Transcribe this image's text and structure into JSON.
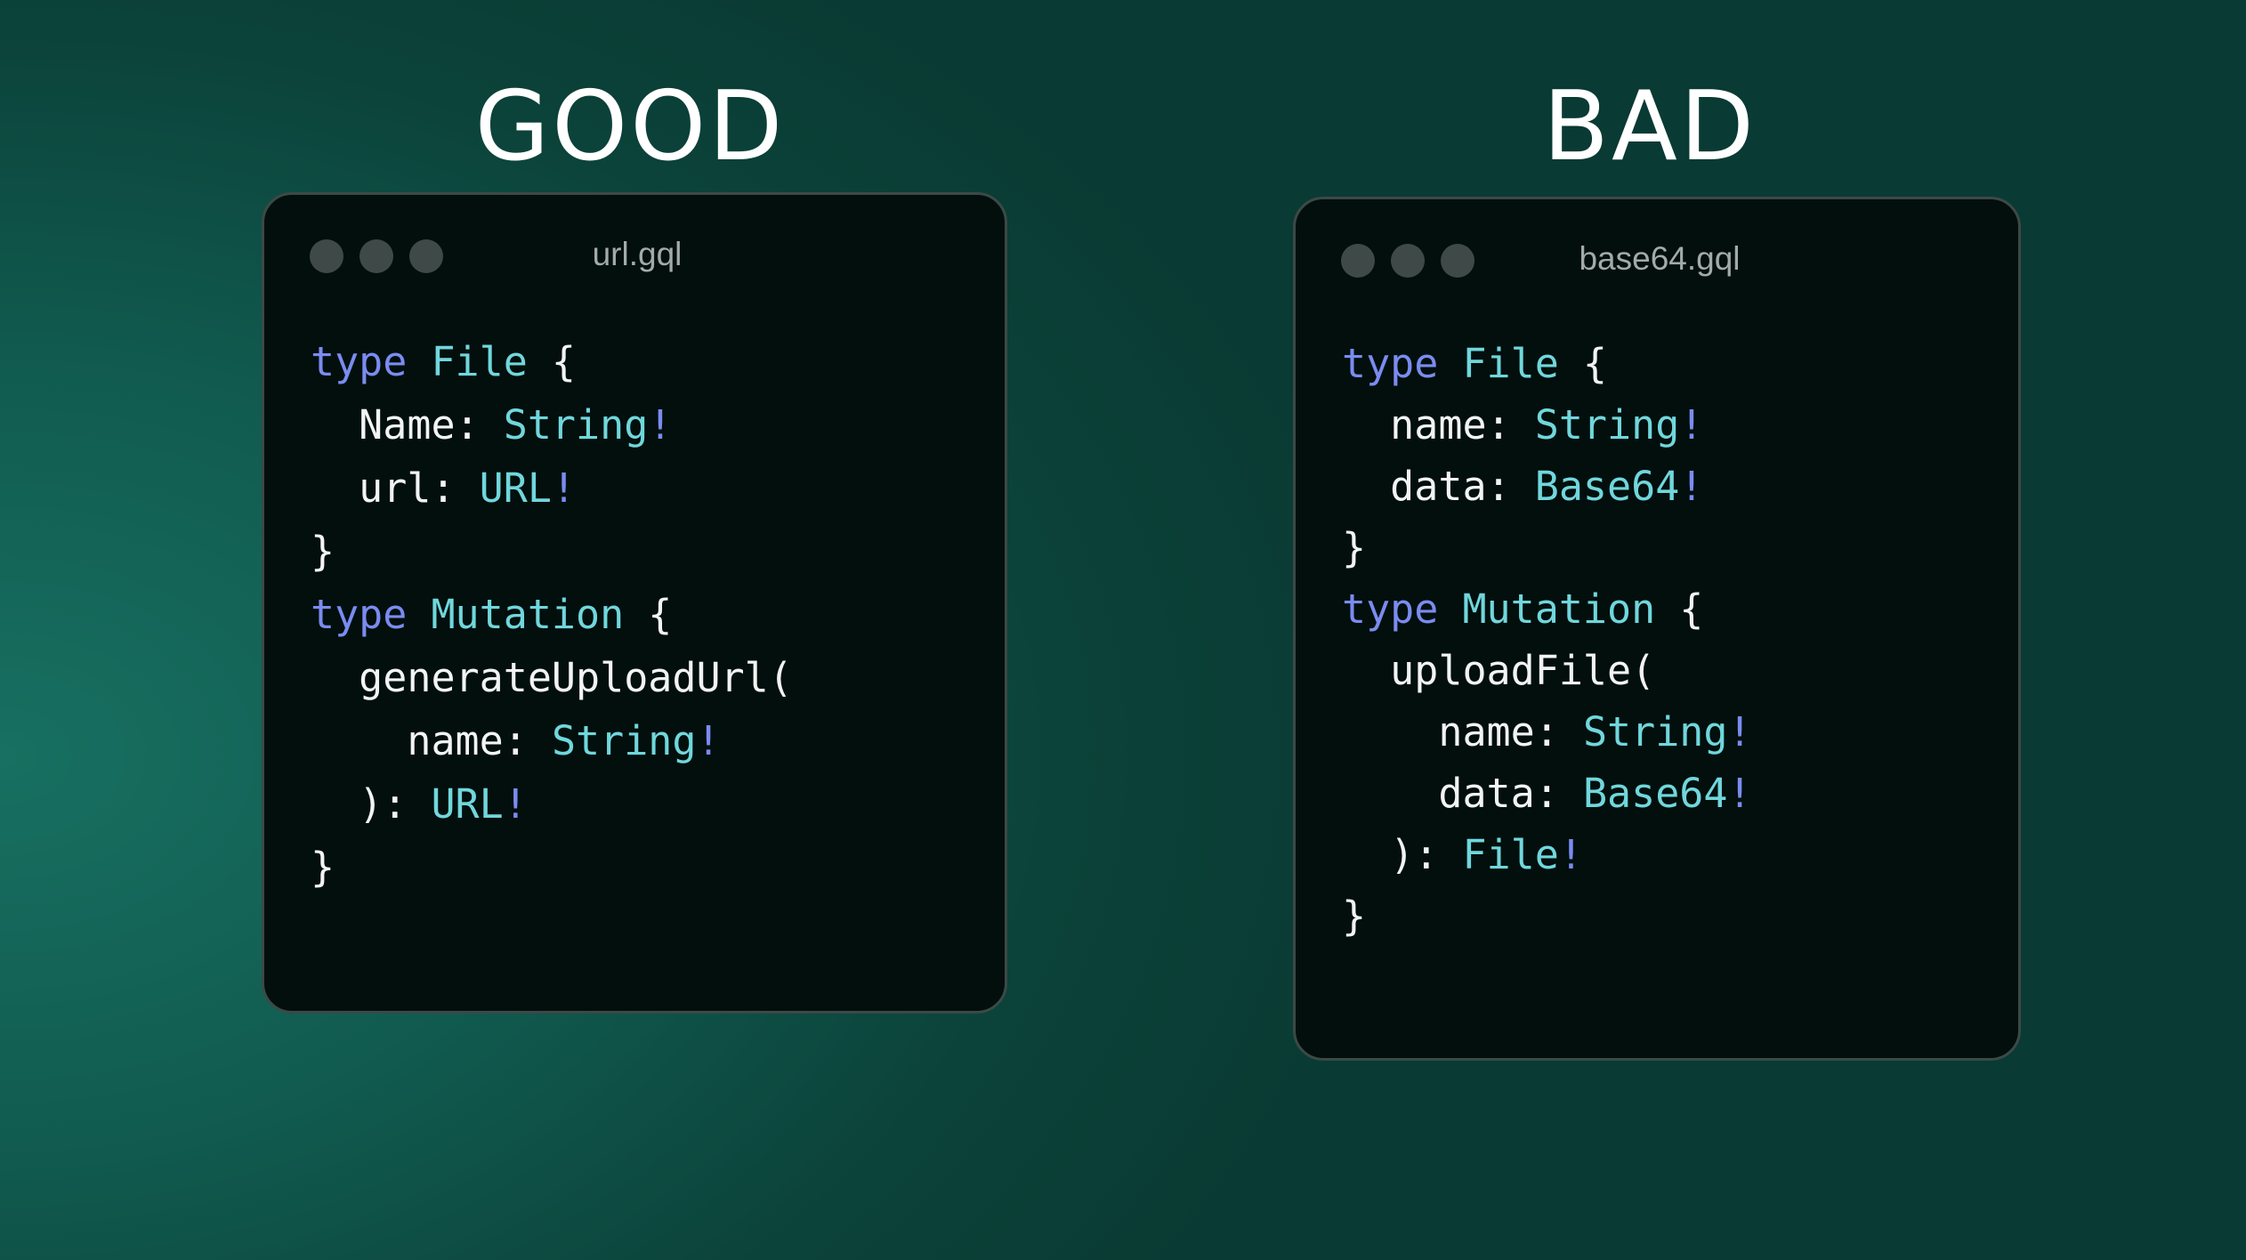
{
  "colors": {
    "keyword": "#7a8cf0",
    "type": "#70d7dc",
    "text": "#f2f4f3"
  },
  "panels": [
    {
      "heading": "GOOD",
      "filename": "url.gql",
      "lines": [
        [
          [
            "kw",
            "type"
          ],
          [
            "pl",
            " "
          ],
          [
            "ty",
            "File"
          ],
          [
            "pl",
            " {"
          ]
        ],
        [
          [
            "pl",
            "  Name: "
          ],
          [
            "ty",
            "String"
          ],
          [
            "kw",
            "!"
          ]
        ],
        [
          [
            "pl",
            "  url: "
          ],
          [
            "ty",
            "URL"
          ],
          [
            "kw",
            "!"
          ]
        ],
        [
          [
            "pl",
            "}"
          ]
        ],
        [
          [
            "kw",
            "type"
          ],
          [
            "pl",
            " "
          ],
          [
            "ty",
            "Mutation"
          ],
          [
            "pl",
            " {"
          ]
        ],
        [
          [
            "pl",
            "  generateUploadUrl("
          ]
        ],
        [
          [
            "pl",
            "    name: "
          ],
          [
            "ty",
            "String"
          ],
          [
            "kw",
            "!"
          ]
        ],
        [
          [
            "pl",
            "  ): "
          ],
          [
            "ty",
            "URL"
          ],
          [
            "kw",
            "!"
          ]
        ],
        [
          [
            "pl",
            "}"
          ]
        ]
      ]
    },
    {
      "heading": "BAD",
      "filename": "base64.gql",
      "lines": [
        [
          [
            "kw",
            "type"
          ],
          [
            "pl",
            " "
          ],
          [
            "ty",
            "File"
          ],
          [
            "pl",
            " {"
          ]
        ],
        [
          [
            "pl",
            "  name: "
          ],
          [
            "ty",
            "String"
          ],
          [
            "kw",
            "!"
          ]
        ],
        [
          [
            "pl",
            "  data: "
          ],
          [
            "ty",
            "Base64"
          ],
          [
            "kw",
            "!"
          ]
        ],
        [
          [
            "pl",
            "}"
          ]
        ],
        [
          [
            "kw",
            "type"
          ],
          [
            "pl",
            " "
          ],
          [
            "ty",
            "Mutation"
          ],
          [
            "pl",
            " {"
          ]
        ],
        [
          [
            "pl",
            "  uploadFile("
          ]
        ],
        [
          [
            "pl",
            "    name: "
          ],
          [
            "ty",
            "String"
          ],
          [
            "kw",
            "!"
          ]
        ],
        [
          [
            "pl",
            "    data: "
          ],
          [
            "ty",
            "Base64"
          ],
          [
            "kw",
            "!"
          ]
        ],
        [
          [
            "pl",
            "  ): "
          ],
          [
            "ty",
            "File"
          ],
          [
            "kw",
            "!"
          ]
        ],
        [
          [
            "pl",
            "}"
          ]
        ]
      ]
    }
  ]
}
